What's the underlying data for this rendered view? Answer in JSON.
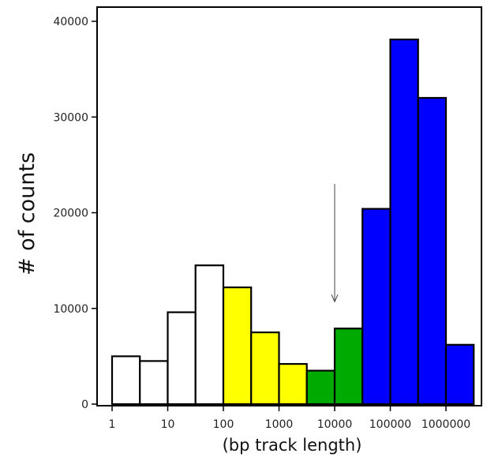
{
  "chart_data": {
    "type": "bar",
    "title": "",
    "xlabel": "(bp track length)",
    "ylabel": "# of counts",
    "xscale": "log10",
    "xlim": [
      0.5,
      3000000
    ],
    "ylim": [
      0,
      40000
    ],
    "x_ticks": [
      {
        "value": 1,
        "label": "1"
      },
      {
        "value": 10,
        "label": "10"
      },
      {
        "value": 100,
        "label": "100"
      },
      {
        "value": 1000,
        "label": "1000"
      },
      {
        "value": 10000,
        "label": "10000"
      },
      {
        "value": 100000,
        "label": "100000"
      },
      {
        "value": 1000000,
        "label": "1000000"
      }
    ],
    "y_ticks": [
      {
        "value": 0,
        "label": "0"
      },
      {
        "value": 10000,
        "label": "10000"
      },
      {
        "value": 20000,
        "label": "20000"
      },
      {
        "value": 30000,
        "label": "30000"
      },
      {
        "value": 40000,
        "label": "40000"
      }
    ],
    "bins": [
      {
        "from": 1,
        "to": 3.16,
        "value": 5000,
        "color": "#ffffff"
      },
      {
        "from": 3.16,
        "to": 10,
        "value": 4500,
        "color": "#ffffff"
      },
      {
        "from": 10,
        "to": 31.6,
        "value": 9600,
        "color": "#ffffff"
      },
      {
        "from": 31.6,
        "to": 100,
        "value": 14500,
        "color": "#ffffff"
      },
      {
        "from": 100,
        "to": 316,
        "value": 12200,
        "color": "#ffff00"
      },
      {
        "from": 316,
        "to": 1000,
        "value": 7500,
        "color": "#ffff00"
      },
      {
        "from": 1000,
        "to": 3160,
        "value": 4200,
        "color": "#ffff00"
      },
      {
        "from": 3160,
        "to": 10000,
        "value": 3500,
        "color": "#00aa00"
      },
      {
        "from": 10000,
        "to": 31600,
        "value": 7900,
        "color": "#00aa00"
      },
      {
        "from": 31600,
        "to": 100000,
        "value": 20400,
        "color": "#0000ff"
      },
      {
        "from": 100000,
        "to": 316000,
        "value": 38100,
        "color": "#0000ff"
      },
      {
        "from": 316000,
        "to": 1000000,
        "value": 32000,
        "color": "#0000ff"
      },
      {
        "from": 1000000,
        "to": 3160000,
        "value": 6200,
        "color": "#0000ff"
      }
    ],
    "annotations": [
      {
        "type": "arrow",
        "x": 10000,
        "y_from": 23000,
        "y_to": 10700
      }
    ],
    "grid": false,
    "legend": "none"
  }
}
